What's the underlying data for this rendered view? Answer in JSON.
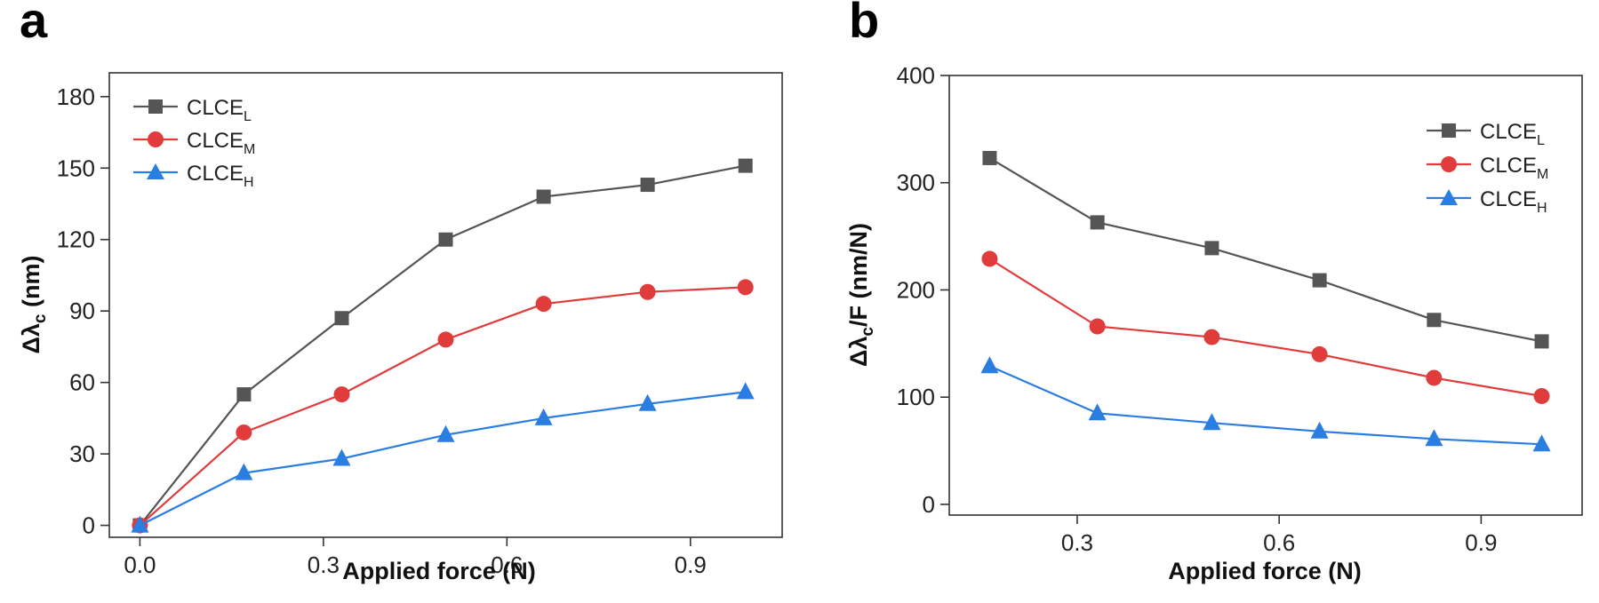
{
  "panels": [
    {
      "label": "a"
    },
    {
      "label": "b"
    }
  ],
  "legend": [
    {
      "base": "CLCE",
      "sub": "L",
      "color": "#555555",
      "marker": "square"
    },
    {
      "base": "CLCE",
      "sub": "M",
      "color": "#e03c3c",
      "marker": "circle"
    },
    {
      "base": "CLCE",
      "sub": "H",
      "color": "#2a7de1",
      "marker": "triangle"
    }
  ],
  "chart_data": [
    {
      "type": "line",
      "panel": "a",
      "title": "",
      "xlabel": "Applied force (N)",
      "ylabel": {
        "prefix": "Δλ",
        "sub": "c",
        "suffix": " (nm)"
      },
      "xlim": [
        -0.05,
        1.05
      ],
      "ylim": [
        -5,
        190
      ],
      "xticks": [
        0.0,
        0.3,
        0.6,
        0.9
      ],
      "xtick_labels": [
        "0.0",
        "0.3",
        "0.6",
        "0.9"
      ],
      "yticks": [
        0,
        30,
        60,
        90,
        120,
        150,
        180
      ],
      "ytick_labels": [
        "0",
        "30",
        "60",
        "90",
        "120",
        "150",
        "180"
      ],
      "x": [
        0.0,
        0.17,
        0.33,
        0.5,
        0.66,
        0.83,
        0.99
      ],
      "series": [
        {
          "name": "CLCE_L",
          "values": [
            0,
            55,
            87,
            120,
            138,
            143,
            151
          ]
        },
        {
          "name": "CLCE_M",
          "values": [
            0,
            39,
            55,
            78,
            93,
            98,
            100
          ]
        },
        {
          "name": "CLCE_H",
          "values": [
            0,
            22,
            28,
            38,
            45,
            51,
            56
          ]
        }
      ],
      "legend_position": "top-left",
      "grid": false
    },
    {
      "type": "line",
      "panel": "b",
      "title": "",
      "xlabel": "Applied force (N)",
      "ylabel": {
        "prefix": "Δλ",
        "sub": "c",
        "suffix": "/F (nm/N)"
      },
      "xlim": [
        0.11,
        1.05
      ],
      "ylim": [
        -10,
        400
      ],
      "xticks": [
        0.3,
        0.6,
        0.9
      ],
      "xtick_labels": [
        "0.3",
        "0.6",
        "0.9"
      ],
      "yticks": [
        0,
        100,
        200,
        300,
        400
      ],
      "ytick_labels": [
        "0",
        "100",
        "200",
        "300",
        "400"
      ],
      "x": [
        0.17,
        0.33,
        0.5,
        0.66,
        0.83,
        0.99
      ],
      "series": [
        {
          "name": "CLCE_L",
          "values": [
            323,
            263,
            239,
            209,
            172,
            152
          ]
        },
        {
          "name": "CLCE_M",
          "values": [
            229,
            166,
            156,
            140,
            118,
            101
          ]
        },
        {
          "name": "CLCE_H",
          "values": [
            129,
            85,
            76,
            68,
            61,
            56
          ]
        }
      ],
      "legend_position": "top-right",
      "grid": false
    }
  ]
}
